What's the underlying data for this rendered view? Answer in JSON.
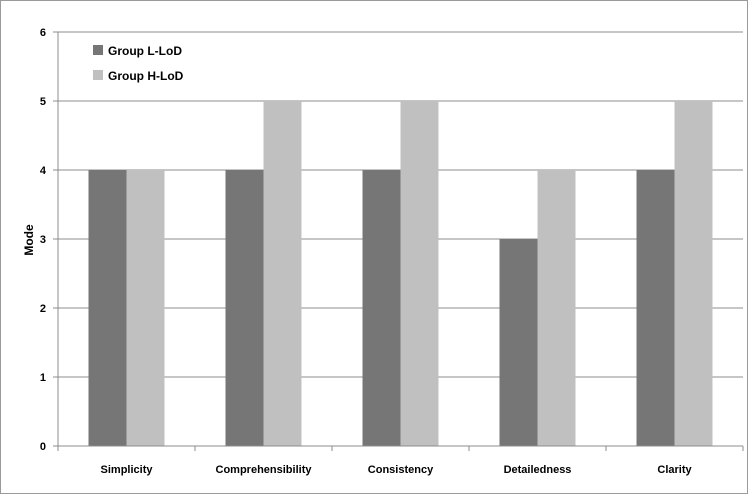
{
  "chart_data": {
    "type": "bar",
    "categories": [
      "Simplicity",
      "Comprehensibility",
      "Consistency",
      "Detailedness",
      "Clarity"
    ],
    "series": [
      {
        "name": "Group L-LoD",
        "values": [
          4,
          4,
          4,
          3,
          4
        ],
        "color": "#767676"
      },
      {
        "name": "Group H-LoD",
        "values": [
          4,
          5,
          5,
          4,
          5
        ],
        "color": "#c0c0c0"
      }
    ],
    "xlabel": "",
    "ylabel": "Mode",
    "ylim": [
      0,
      6
    ],
    "yticks": [
      "0",
      "1",
      "2",
      "3",
      "4",
      "5",
      "6"
    ],
    "grid": true,
    "legend_position": "top-left"
  }
}
